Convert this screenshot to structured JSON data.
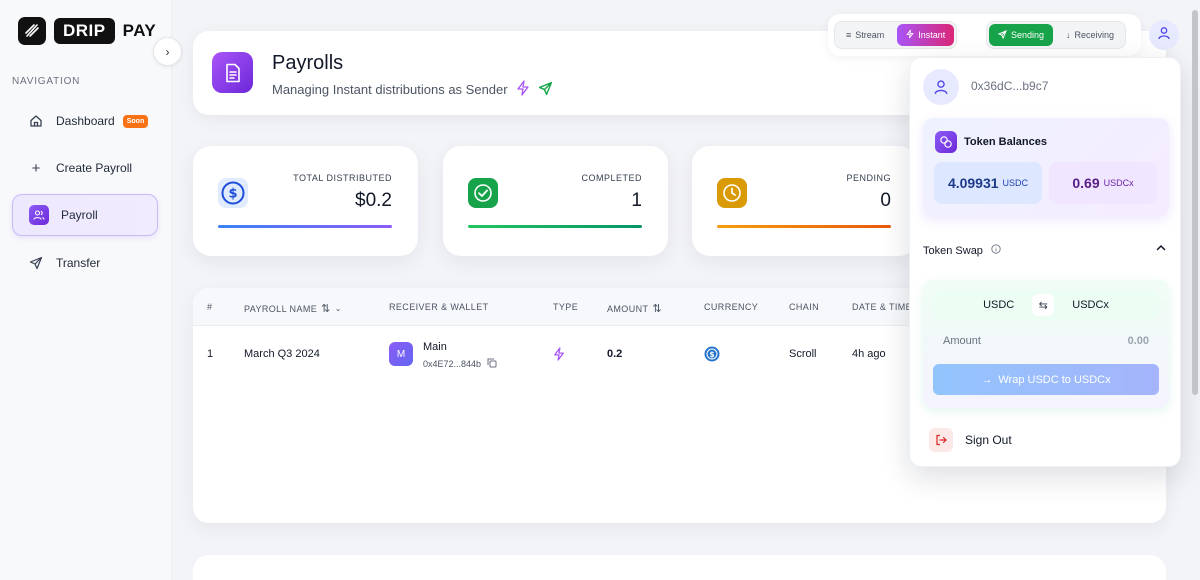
{
  "brand": {
    "drip": "DRIP",
    "pay": "PAY"
  },
  "sidebar": {
    "heading": "NAVIGATION",
    "items": [
      {
        "label": "Dashboard",
        "badge": "Soon",
        "icon": "home-icon"
      },
      {
        "label": "Create Payroll",
        "icon": "plus-icon"
      },
      {
        "label": "Payroll",
        "icon": "users-icon",
        "active": true
      },
      {
        "label": "Transfer",
        "icon": "send-icon"
      }
    ]
  },
  "header": {
    "title": "Payrolls",
    "subtitle": "Managing Instant distributions as Sender"
  },
  "toggles": {
    "mode": [
      "Stream",
      "Instant"
    ],
    "direction": [
      "Sending",
      "Receiving"
    ],
    "active_mode": "Instant",
    "active_direction": "Sending"
  },
  "stats": [
    {
      "label": "TOTAL DISTRIBUTED",
      "value": "$0.2",
      "color": "#2563eb"
    },
    {
      "label": "COMPLETED",
      "value": "1",
      "color": "#16a34a"
    },
    {
      "label": "PENDING",
      "value": "0",
      "color": "#d97706"
    }
  ],
  "table": {
    "columns": [
      "#",
      "PAYROLL NAME",
      "RECEIVER & WALLET",
      "TYPE",
      "AMOUNT",
      "CURRENCY",
      "CHAIN",
      "DATE & TIME"
    ],
    "rows": [
      {
        "index": "1",
        "name": "March Q3 2024",
        "receiver": "Main",
        "receiver_initial": "M",
        "wallet": "0x4E72...844b",
        "type_icon": "bolt-icon",
        "amount": "0.2",
        "currency_icon": "usdc-icon",
        "chain": "Scroll",
        "time": "4h ago"
      }
    ]
  },
  "account": {
    "address": "0x36dC...b9c7",
    "balances_title": "Token Balances",
    "balances": [
      {
        "value": "4.09931",
        "unit": "USDC"
      },
      {
        "value": "0.69",
        "unit": "USDCx"
      }
    ],
    "swap_title": "Token Swap",
    "swap_from": "USDC",
    "swap_to": "USDCx",
    "amount_label": "Amount",
    "amount_placeholder": "0.00",
    "wrap_label": "Wrap USDC to USDCx",
    "sign_out": "Sign Out"
  },
  "colors": {
    "accent": "#8b5cf6",
    "green": "#16a34a",
    "orange": "#f97316"
  }
}
